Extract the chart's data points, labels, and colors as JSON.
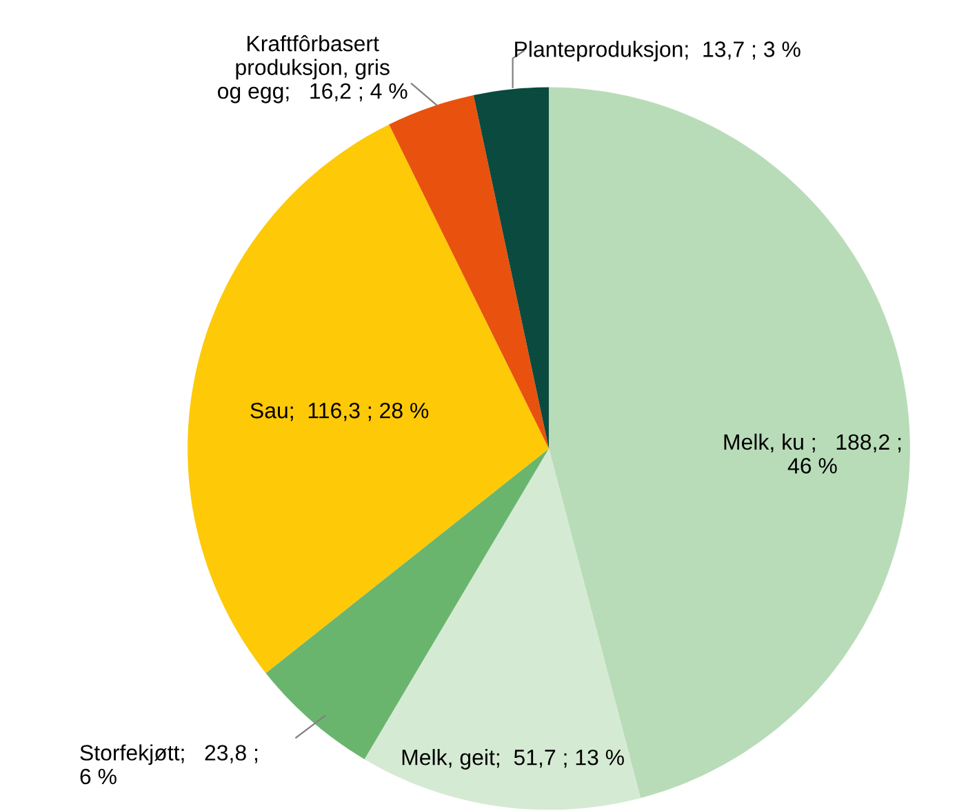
{
  "chart_data": {
    "type": "pie",
    "categories": [
      "Melk, ku",
      "Melk, geit",
      "Storfekjøtt",
      "Sau",
      "Kraftfôrbasert\nproduksjon, gris\nog egg",
      "Planteproduksjon"
    ],
    "values": [
      188.2,
      51.7,
      23.8,
      116.3,
      16.2,
      13.7
    ],
    "value_labels": [
      "188,2 ;\n46 %",
      "51,7 ; 13 %",
      "23,8 ;\n6 %",
      "116,3 ; 28 %",
      "16,2 ; 4 %",
      "13,7 ; 3 %"
    ],
    "colors": [
      "#b9dcb8",
      "#d5ead3",
      "#6ab56e",
      "#fec907",
      "#e8520e",
      "#0b4a3e"
    ]
  }
}
